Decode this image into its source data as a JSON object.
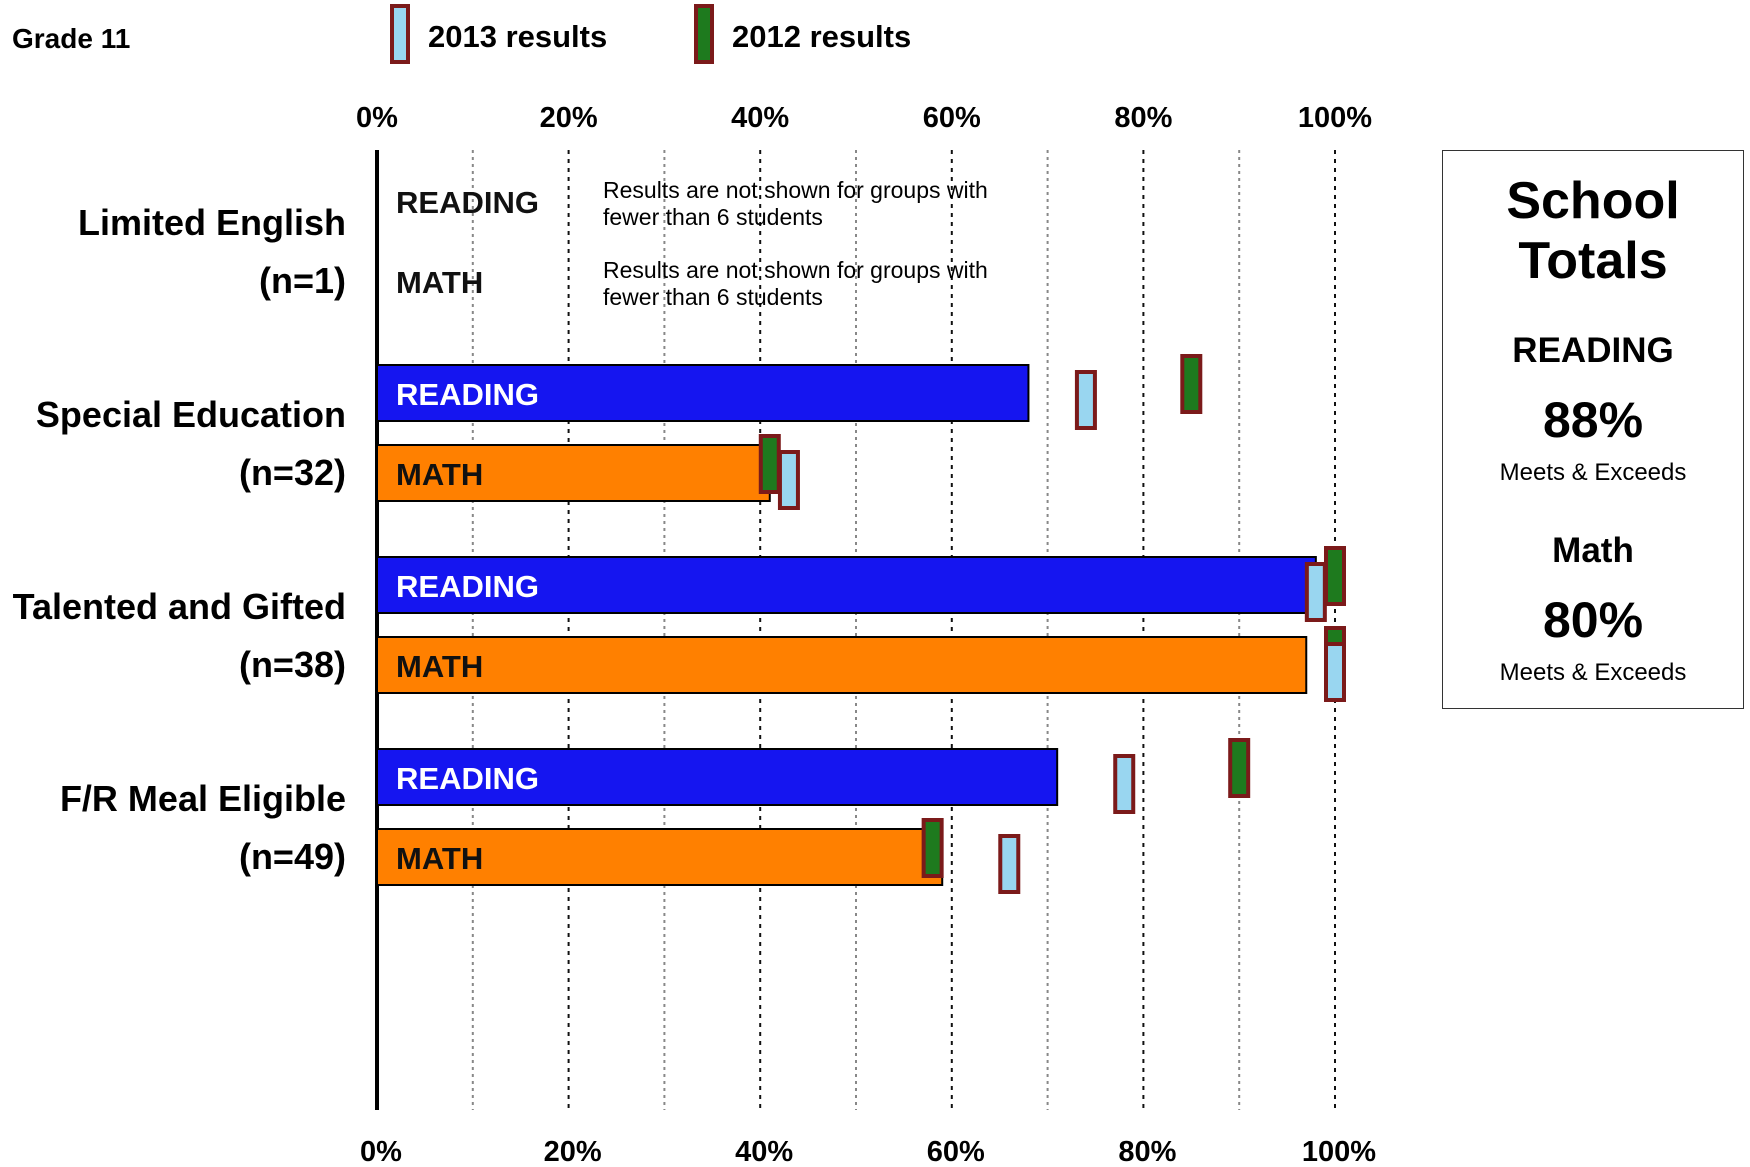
{
  "chart_data": {
    "type": "bar",
    "grade_label": "Grade 11",
    "legend": [
      {
        "label": "2013 results",
        "fill": "#99d6f0",
        "stroke": "#7b1a1a"
      },
      {
        "label": "2012 results",
        "fill": "#1e7a1e",
        "stroke": "#7b1a1a"
      }
    ],
    "x_ticks": [
      "0%",
      "20%",
      "40%",
      "60%",
      "80%",
      "100%"
    ],
    "xlim": [
      0,
      100
    ],
    "colors": {
      "reading": "#1515f0",
      "math": "#ff8000",
      "reading_text": "#ffffff",
      "math_text": "#111111"
    },
    "suppressed_note_line1": "Results are not shown for groups with",
    "suppressed_note_line2": "fewer than 6 students",
    "groups": [
      {
        "name": "Limited English",
        "n": "(n=1)",
        "suppressed": true,
        "rows": [
          {
            "label": "READING",
            "value": null,
            "r2013": null,
            "r2012": null
          },
          {
            "label": "MATH",
            "value": null,
            "r2013": null,
            "r2012": null
          }
        ]
      },
      {
        "name": "Special Education",
        "n": "(n=32)",
        "suppressed": false,
        "rows": [
          {
            "label": "READING",
            "value": 68,
            "r2013": 74,
            "r2012": 85
          },
          {
            "label": "MATH",
            "value": 41,
            "r2013": 43,
            "r2012": 41
          }
        ]
      },
      {
        "name": "Talented and Gifted",
        "n": "(n=38)",
        "suppressed": false,
        "rows": [
          {
            "label": "READING",
            "value": 98,
            "r2013": 98,
            "r2012": 100
          },
          {
            "label": "MATH",
            "value": 97,
            "r2013": 100,
            "r2012": 100
          }
        ]
      },
      {
        "name": "F/R Meal Eligible",
        "n": "(n=49)",
        "suppressed": false,
        "rows": [
          {
            "label": "READING",
            "value": 71,
            "r2013": 78,
            "r2012": 90
          },
          {
            "label": "MATH",
            "value": 59,
            "r2013": 66,
            "r2012": 58
          }
        ]
      }
    ]
  },
  "school_totals": {
    "title_line1": "School",
    "title_line2": "Totals",
    "reading_label": "READING",
    "reading_pct": "88%",
    "reading_note": "Meets & Exceeds",
    "math_label": "Math",
    "math_pct": "80%",
    "math_note": "Meets & Exceeds"
  }
}
